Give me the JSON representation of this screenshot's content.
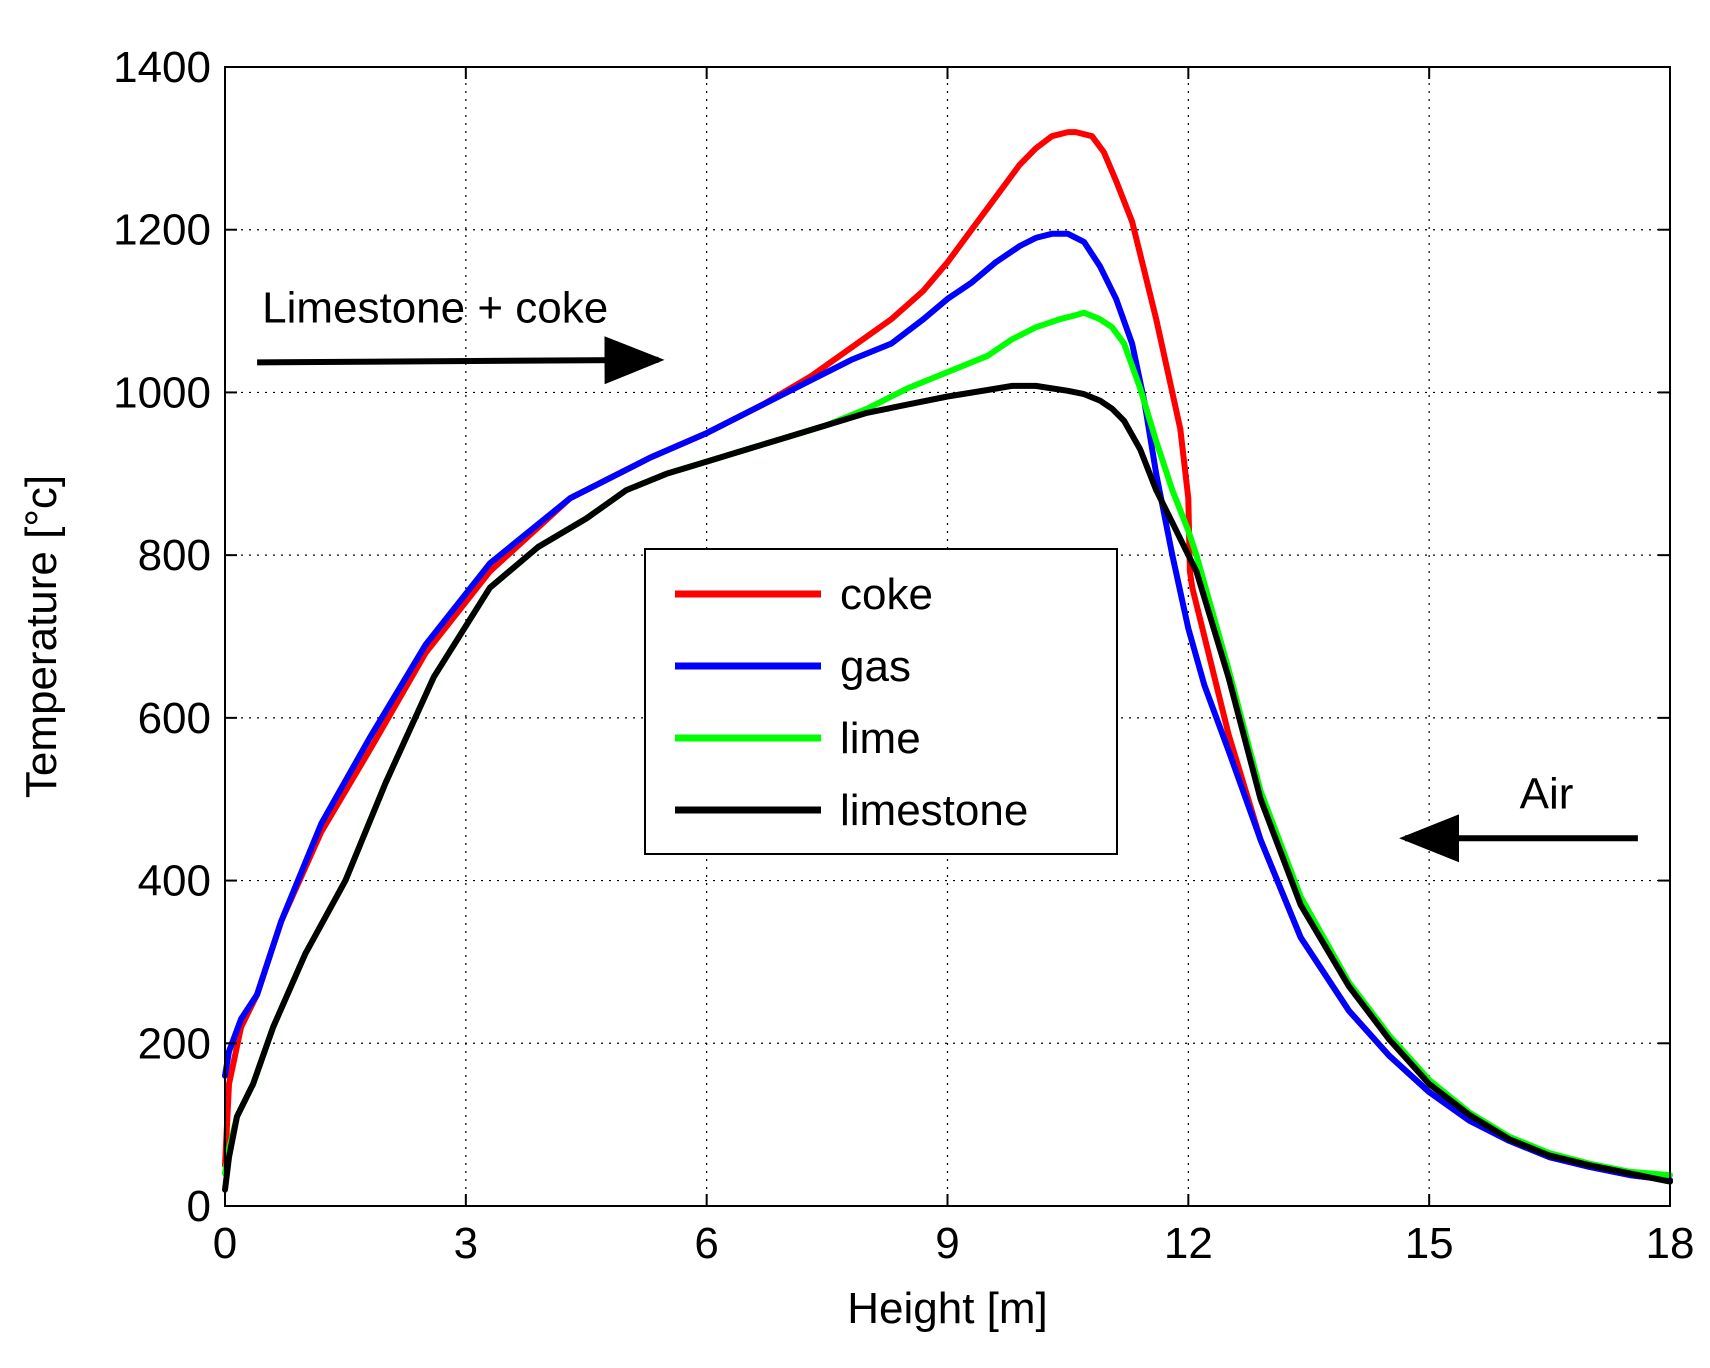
{
  "chart_data": {
    "type": "line",
    "title": "",
    "xlabel": "Height [m]",
    "ylabel": "Temperature [°c]",
    "xlim": [
      0,
      18
    ],
    "ylim": [
      0,
      1400
    ],
    "xticks": [
      0,
      3,
      6,
      9,
      12,
      15,
      18
    ],
    "yticks": [
      0,
      200,
      400,
      600,
      800,
      1000,
      1200,
      1400
    ],
    "grid": true,
    "legend_position": "center",
    "series": [
      {
        "name": "coke",
        "color": "#ff0000",
        "x": [
          0,
          0.05,
          0.2,
          0.4,
          0.7,
          1.2,
          1.8,
          2.5,
          3.3,
          4.3,
          5.3,
          6.0,
          6.7,
          7.3,
          7.8,
          8.3,
          8.7,
          9.0,
          9.3,
          9.6,
          9.9,
          10.1,
          10.3,
          10.5,
          10.6,
          10.8,
          10.95,
          11.1,
          11.3,
          11.45,
          11.6,
          11.8,
          11.9,
          12.0,
          12.02,
          12.05,
          12.2,
          12.5,
          12.9,
          13.4,
          14.0,
          14.5,
          15.0,
          15.5,
          16.0,
          16.5,
          17.0,
          17.5,
          18.0
        ],
        "values": [
          50,
          150,
          220,
          260,
          350,
          460,
          560,
          680,
          780,
          870,
          920,
          950,
          985,
          1020,
          1055,
          1090,
          1125,
          1160,
          1200,
          1240,
          1280,
          1300,
          1315,
          1320,
          1320,
          1315,
          1295,
          1260,
          1210,
          1150,
          1090,
          1000,
          955,
          870,
          780,
          760,
          700,
          580,
          450,
          330,
          240,
          185,
          140,
          105,
          80,
          60,
          48,
          38,
          32
        ]
      },
      {
        "name": "gas",
        "color": "#0000ff",
        "x": [
          0,
          0.05,
          0.2,
          0.4,
          0.7,
          1.2,
          1.8,
          2.5,
          3.3,
          4.3,
          5.3,
          6.0,
          6.7,
          7.3,
          7.8,
          8.3,
          8.7,
          9.0,
          9.3,
          9.6,
          9.9,
          10.1,
          10.3,
          10.5,
          10.7,
          10.9,
          11.1,
          11.3,
          11.45,
          11.6,
          11.8,
          12.0,
          12.2,
          12.5,
          12.9,
          13.4,
          14.0,
          14.5,
          15.0,
          15.5,
          16.0,
          16.5,
          17.0,
          17.5,
          18.0
        ],
        "values": [
          160,
          190,
          230,
          260,
          350,
          470,
          575,
          690,
          790,
          870,
          920,
          950,
          985,
          1015,
          1040,
          1060,
          1090,
          1115,
          1135,
          1160,
          1180,
          1190,
          1195,
          1195,
          1185,
          1155,
          1115,
          1060,
          990,
          900,
          800,
          710,
          640,
          560,
          450,
          330,
          240,
          185,
          140,
          105,
          80,
          60,
          48,
          38,
          32
        ]
      },
      {
        "name": "lime",
        "color": "#00ff00",
        "x": [
          0,
          0.05,
          0.15,
          0.35,
          0.6,
          1.0,
          1.5,
          2.0,
          2.6,
          3.3,
          3.9,
          4.5,
          5.0,
          5.5,
          6.0,
          6.5,
          7.0,
          7.5,
          8.0,
          8.5,
          9.0,
          9.5,
          9.8,
          10.1,
          10.4,
          10.6,
          10.7,
          10.9,
          11.05,
          11.2,
          11.4,
          11.6,
          11.8,
          12.0,
          12.1,
          12.5,
          12.9,
          13.4,
          14.0,
          14.5,
          15.0,
          15.5,
          16.0,
          16.5,
          17.0,
          17.5,
          18.0
        ],
        "values": [
          40,
          70,
          110,
          150,
          220,
          310,
          400,
          520,
          650,
          760,
          810,
          845,
          880,
          900,
          915,
          930,
          945,
          960,
          980,
          1005,
          1025,
          1045,
          1065,
          1080,
          1090,
          1095,
          1098,
          1090,
          1080,
          1060,
          1005,
          940,
          880,
          830,
          800,
          660,
          510,
          380,
          275,
          210,
          155,
          115,
          85,
          65,
          52,
          42,
          38
        ]
      },
      {
        "name": "limestone",
        "color": "#000000",
        "x": [
          0,
          0.05,
          0.15,
          0.35,
          0.6,
          1.0,
          1.5,
          2.0,
          2.6,
          3.3,
          3.9,
          4.5,
          5.0,
          5.5,
          6.0,
          6.5,
          7.0,
          7.5,
          8.0,
          8.5,
          9.0,
          9.5,
          9.8,
          10.1,
          10.3,
          10.5,
          10.7,
          10.9,
          11.05,
          11.2,
          11.4,
          11.6,
          11.8,
          12.0,
          12.1,
          12.5,
          12.9,
          13.4,
          14.0,
          14.5,
          15.0,
          15.5,
          16.0,
          16.5,
          17.0,
          17.5,
          18.0
        ],
        "values": [
          20,
          60,
          110,
          150,
          220,
          310,
          400,
          520,
          650,
          760,
          810,
          845,
          880,
          900,
          915,
          930,
          945,
          960,
          975,
          985,
          995,
          1003,
          1008,
          1008,
          1005,
          1002,
          998,
          990,
          980,
          965,
          930,
          880,
          840,
          800,
          780,
          650,
          500,
          370,
          270,
          205,
          150,
          112,
          82,
          62,
          50,
          40,
          30
        ]
      }
    ],
    "annotations": [
      {
        "text": "Limestone + coke",
        "arrow_from": [
          0.4,
          1037
        ],
        "arrow_to": [
          5.4,
          1040
        ],
        "direction": "right"
      },
      {
        "text": "Air",
        "arrow_from": [
          17.6,
          452
        ],
        "arrow_to": [
          14.7,
          452
        ],
        "direction": "left"
      }
    ]
  }
}
